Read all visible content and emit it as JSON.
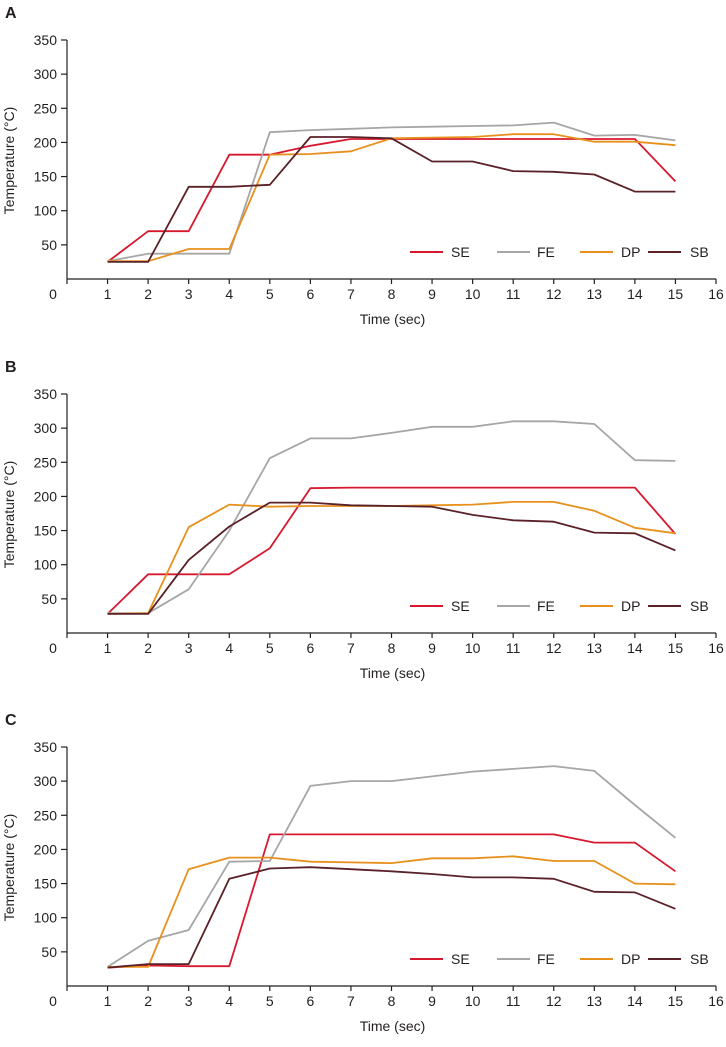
{
  "figure": {
    "panel_labels": [
      "A",
      "B",
      "C"
    ]
  },
  "colors": {
    "SE": "#d7192f",
    "FE": "#a6a6a6",
    "DP": "#e8901c",
    "SB": "#5a2129",
    "axis": "#231f20"
  },
  "chart_data": [
    {
      "type": "line",
      "panel": "A",
      "title": "",
      "xlabel": "Time (sec)",
      "ylabel": "Temperature (°C)",
      "xlim": [
        0,
        16
      ],
      "ylim": [
        0,
        350
      ],
      "x_ticks": [
        0,
        1,
        2,
        3,
        4,
        5,
        6,
        7,
        8,
        9,
        10,
        11,
        12,
        13,
        14,
        15,
        16
      ],
      "y_ticks": [
        50,
        100,
        150,
        200,
        250,
        300,
        350
      ],
      "grid": false,
      "legend_position": "bottom-right",
      "x": [
        1,
        2,
        3,
        4,
        5,
        6,
        7,
        8,
        9,
        10,
        11,
        12,
        13,
        14,
        15
      ],
      "series": [
        {
          "name": "SE",
          "values": [
            25,
            70,
            70,
            182,
            182,
            195,
            205,
            205,
            205,
            205,
            205,
            205,
            205,
            205,
            143
          ]
        },
        {
          "name": "FE",
          "values": [
            26,
            37,
            37,
            37,
            215,
            218,
            220,
            222,
            223,
            224,
            225,
            229,
            210,
            211,
            203
          ]
        },
        {
          "name": "DP",
          "values": [
            26,
            26,
            44,
            44,
            182,
            183,
            187,
            206,
            207,
            208,
            212,
            212,
            201,
            201,
            196
          ]
        },
        {
          "name": "SB",
          "values": [
            25,
            25,
            135,
            135,
            138,
            208,
            208,
            206,
            172,
            172,
            158,
            157,
            153,
            128,
            128
          ]
        }
      ]
    },
    {
      "type": "line",
      "panel": "B",
      "title": "",
      "xlabel": "Time (sec)",
      "ylabel": "Temperature (°C)",
      "xlim": [
        0,
        16
      ],
      "ylim": [
        0,
        350
      ],
      "x_ticks": [
        0,
        1,
        2,
        3,
        4,
        5,
        6,
        7,
        8,
        9,
        10,
        11,
        12,
        13,
        14,
        15,
        16
      ],
      "y_ticks": [
        50,
        100,
        150,
        200,
        250,
        300,
        350
      ],
      "grid": false,
      "legend_position": "bottom-right",
      "x": [
        1,
        2,
        3,
        4,
        5,
        6,
        7,
        8,
        9,
        10,
        11,
        12,
        13,
        14,
        15
      ],
      "series": [
        {
          "name": "SE",
          "values": [
            28,
            86,
            86,
            86,
            124,
            212,
            213,
            213,
            213,
            213,
            213,
            213,
            213,
            213,
            145
          ]
        },
        {
          "name": "FE",
          "values": [
            29,
            29,
            64,
            150,
            256,
            285,
            285,
            293,
            302,
            302,
            310,
            310,
            306,
            253,
            252
          ]
        },
        {
          "name": "DP",
          "values": [
            28,
            29,
            155,
            188,
            185,
            186,
            186,
            186,
            187,
            188,
            192,
            192,
            179,
            154,
            146
          ]
        },
        {
          "name": "SB",
          "values": [
            28,
            28,
            107,
            156,
            191,
            191,
            187,
            186,
            185,
            173,
            165,
            163,
            147,
            146,
            121
          ]
        }
      ]
    },
    {
      "type": "line",
      "panel": "C",
      "title": "",
      "xlabel": "Time (sec)",
      "ylabel": "Temperature (°C)",
      "xlim": [
        0,
        16
      ],
      "ylim": [
        0,
        350
      ],
      "x_ticks": [
        0,
        1,
        2,
        3,
        4,
        5,
        6,
        7,
        8,
        9,
        10,
        11,
        12,
        13,
        14,
        15,
        16
      ],
      "y_ticks": [
        50,
        100,
        150,
        200,
        250,
        300,
        350
      ],
      "grid": false,
      "legend_position": "bottom-right",
      "x": [
        1,
        2,
        3,
        4,
        5,
        6,
        7,
        8,
        9,
        10,
        11,
        12,
        13,
        14,
        15
      ],
      "series": [
        {
          "name": "SE",
          "values": [
            27,
            30,
            29,
            29,
            222,
            222,
            222,
            222,
            222,
            222,
            222,
            222,
            210,
            210,
            168
          ]
        },
        {
          "name": "FE",
          "values": [
            28,
            66,
            82,
            182,
            183,
            293,
            300,
            300,
            307,
            314,
            318,
            322,
            315,
            265,
            217
          ]
        },
        {
          "name": "DP",
          "values": [
            28,
            28,
            171,
            188,
            188,
            182,
            181,
            180,
            187,
            187,
            190,
            183,
            183,
            150,
            149
          ]
        },
        {
          "name": "SB",
          "values": [
            27,
            32,
            32,
            157,
            172,
            174,
            171,
            168,
            164,
            159,
            159,
            157,
            138,
            137,
            113
          ]
        }
      ]
    }
  ]
}
